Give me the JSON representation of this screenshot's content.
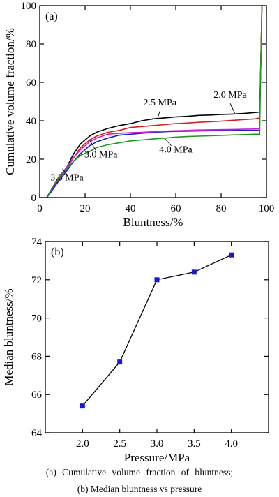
{
  "captions": {
    "a": "(a) Cumulative volume fraction of bluntness;",
    "b": "(b) Median bluntness vs pressure"
  },
  "chart_data": [
    {
      "type": "line",
      "panel_label": "(a)",
      "xlabel": "Bluntness/%",
      "ylabel": "Cumulative volume fraction/%",
      "xlim": [
        0,
        100
      ],
      "ylim": [
        0,
        100
      ],
      "xticks": [
        0,
        20,
        40,
        60,
        80,
        100
      ],
      "yticks": [
        0,
        20,
        40,
        60,
        80,
        100
      ],
      "x_tick_labels": [
        "0",
        "20",
        "40",
        "60",
        "80",
        "100"
      ],
      "y_tick_labels": [
        "0",
        "20",
        "40",
        "60",
        "80",
        "100"
      ],
      "grid": false,
      "series": [
        {
          "name": "2.0 MPa",
          "color": "#000000",
          "x": [
            3,
            5,
            8,
            12,
            15,
            18,
            22,
            25,
            30,
            35,
            40,
            45,
            50,
            55,
            60,
            65,
            70,
            75,
            80,
            85,
            90,
            95,
            97,
            97.5,
            98
          ],
          "y": [
            0,
            3,
            9,
            16,
            23,
            28,
            32,
            34,
            36,
            37.5,
            38.5,
            40,
            41,
            41.5,
            42,
            42.3,
            42.8,
            43,
            43.3,
            43.5,
            43.8,
            44.3,
            44.5,
            70,
            100
          ]
        },
        {
          "name": "2.5 MPa",
          "color": "#d62020",
          "x": [
            3,
            5,
            8,
            12,
            15,
            18,
            22,
            25,
            30,
            35,
            40,
            45,
            50,
            55,
            60,
            65,
            70,
            75,
            80,
            85,
            90,
            95,
            97,
            97.5,
            98
          ],
          "y": [
            0,
            3,
            9,
            15,
            21,
            26,
            30,
            32,
            34,
            35,
            36.5,
            37,
            37.5,
            38,
            38.5,
            38.8,
            39.2,
            39.5,
            39.8,
            40.2,
            40.6,
            41,
            41.5,
            70,
            100
          ]
        },
        {
          "name": "3.0 MPa",
          "color": "#1a1acc",
          "x": [
            3,
            5,
            8,
            12,
            15,
            18,
            22,
            25,
            30,
            35,
            40,
            45,
            50,
            55,
            60,
            65,
            70,
            75,
            80,
            85,
            90,
            95,
            97
          ],
          "y": [
            0,
            3,
            8,
            14,
            19,
            23,
            27,
            29,
            31,
            32.5,
            33,
            33.5,
            34,
            34.3,
            34.5,
            34.6,
            34.7,
            34.8,
            34.9,
            35,
            35,
            35,
            35
          ]
        },
        {
          "name": "3.5 MPa",
          "color": "#cc22cc",
          "x": [
            3,
            5,
            8,
            12,
            15,
            18,
            22,
            25,
            30,
            35,
            40,
            45,
            50,
            55,
            60,
            65,
            70,
            75,
            80,
            85,
            90,
            95,
            97
          ],
          "y": [
            0,
            4,
            10,
            16,
            21,
            25,
            29,
            31,
            33,
            33.5,
            33.8,
            34,
            34.3,
            34.6,
            34.8,
            35,
            35.2,
            35.3,
            35.4,
            35.5,
            35.6,
            35.7,
            35.8
          ]
        },
        {
          "name": "4.0 MPa",
          "color": "#1f9a1f",
          "x": [
            3,
            5,
            8,
            12,
            15,
            18,
            22,
            25,
            30,
            35,
            40,
            45,
            50,
            55,
            60,
            65,
            70,
            75,
            80,
            85,
            90,
            95,
            97,
            97.5,
            98
          ],
          "y": [
            0,
            4,
            10,
            15,
            19,
            22,
            24,
            26,
            27.5,
            28.5,
            29.5,
            30,
            30.5,
            31,
            31.5,
            31.8,
            32,
            32.2,
            32.4,
            32.6,
            32.8,
            33,
            33,
            70,
            100
          ]
        }
      ],
      "annotations": [
        {
          "text": "2.0 MPa",
          "x": 84,
          "y": 52
        },
        {
          "text": "2.5 MPa",
          "x": 53,
          "y": 48
        },
        {
          "text": "3.0 MPa",
          "x": 27,
          "y": 21
        },
        {
          "text": "4.0 MPa",
          "x": 60,
          "y": 23.5
        },
        {
          "text": "3.5 MPa",
          "x": 12,
          "y": 9
        }
      ]
    },
    {
      "type": "line",
      "panel_label": "(b)",
      "xlabel": "Pressure/MPa",
      "ylabel": "Median bluntness/%",
      "xlim": [
        1.5,
        4.5
      ],
      "ylim": [
        64,
        74
      ],
      "xticks": [
        2.0,
        2.5,
        3.0,
        3.5,
        4.0
      ],
      "yticks": [
        64,
        66,
        68,
        70,
        72,
        74
      ],
      "x_tick_labels": [
        "2.0",
        "2.5",
        "3.0",
        "3.5",
        "4.0"
      ],
      "y_tick_labels": [
        "64",
        "66",
        "68",
        "70",
        "72",
        "74"
      ],
      "grid": false,
      "marker_color": "#1a1acc",
      "series": [
        {
          "x": [
            2.0,
            2.5,
            3.0,
            3.5,
            4.0
          ],
          "y": [
            65.4,
            67.7,
            72.0,
            72.4,
            73.3
          ]
        }
      ]
    }
  ]
}
